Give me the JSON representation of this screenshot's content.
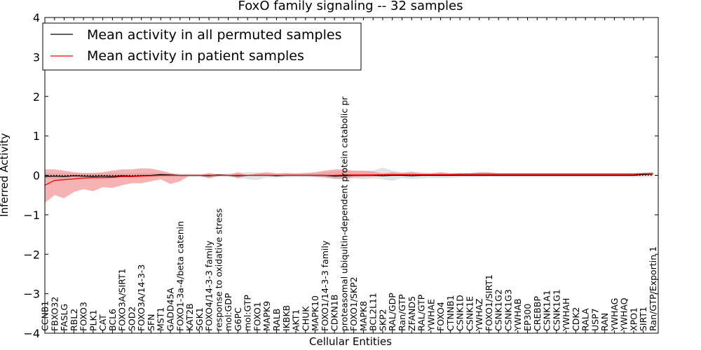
{
  "chart_data": {
    "type": "line",
    "title": "FoxO family signaling -- 32 samples",
    "xlabel": "Cellular Entities",
    "ylabel": "Inferred Activity",
    "ylim": [
      -4,
      4
    ],
    "yticks": [
      -4,
      -3,
      -2,
      -1,
      0,
      1,
      2,
      3,
      4
    ],
    "ytick_labels": [
      "−4",
      "−3",
      "−2",
      "−1",
      "0",
      "1",
      "2",
      "3",
      "4"
    ],
    "legend": {
      "location": "upper-left",
      "entries": [
        {
          "label": "Mean activity in all permuted samples",
          "color": "#000000"
        },
        {
          "label": "Mean activity in patient samples",
          "color": "#ff0000"
        }
      ]
    },
    "categories": [
      "CCNB1",
      "FBXO32",
      "FASLG",
      "RBL2",
      "FOXO3",
      "PLK1",
      "CAT",
      "BCL6",
      "FOXO3A/SIRT1",
      "SOD2",
      "FOXO3A/14-3-3",
      "SFN",
      "MST1",
      "GADD45A",
      "FOXO1-3a-4/beta catenin",
      "KAT2B",
      "SGK1",
      "FOXO4/14-3-3 family",
      "response to oxidative stress",
      "mol:GDP",
      "G6PC",
      "mol:GTP",
      "FOXO1",
      "MAPK9",
      "RALB",
      "IKBKB",
      "AKT1",
      "CHUK",
      "MAPK10",
      "FOXO1/14-3-3 family",
      "CDKN1B",
      "proteasomal ubiquitin-dependent protein catabolic pr",
      "FOXO1/SKP2",
      "MAPK8",
      "BCL2L11",
      "SKP2",
      "RAL/GDP",
      "Ran/GTP",
      "ZFAND5",
      "RAL/GTP",
      "YWHAE",
      "FOXO4",
      "CTNNB1",
      "CSNK1D",
      "CSNK1E",
      "YWHAZ",
      "FOXO1/SIRT1",
      "CSNK1G2",
      "CSNK1G3",
      "YWHAB",
      "EP300",
      "CREBBP",
      "CSNK1A1",
      "CSNK1G1",
      "YWHAH",
      "CDK2",
      "RALA",
      "USP7",
      "RAN",
      "YWHAG",
      "YWHAQ",
      "XPO1",
      "SIRT1",
      "Ran/GTP/Exportin 1"
    ],
    "series": [
      {
        "name": "Mean activity in all permuted samples",
        "color": "#000000",
        "values": [
          -0.03,
          -0.02,
          -0.03,
          -0.01,
          -0.02,
          -0.03,
          -0.02,
          -0.03,
          -0.01,
          -0.02,
          -0.01,
          0.0,
          0.02,
          0.01,
          0.0,
          0.0,
          0.0,
          -0.01,
          0.01,
          0.0,
          -0.01,
          0.0,
          0.0,
          0.0,
          -0.01,
          0.0,
          0.0,
          0.0,
          0.0,
          0.0,
          -0.02,
          -0.01,
          0.0,
          0.0,
          0.0,
          -0.01,
          0.0,
          0.0,
          -0.01,
          0.0,
          0.0,
          0.0,
          0.0,
          0.0,
          0.0,
          0.0,
          0.0,
          0.0,
          0.0,
          0.0,
          0.0,
          0.0,
          0.0,
          0.0,
          0.0,
          0.0,
          0.0,
          0.0,
          0.0,
          0.0,
          0.0,
          0.0,
          0.02,
          0.03
        ],
        "band_lower": [
          -0.08,
          -0.1,
          -0.1,
          -0.08,
          -0.08,
          -0.08,
          -0.07,
          -0.08,
          -0.06,
          -0.06,
          -0.05,
          -0.04,
          -0.03,
          -0.03,
          -0.04,
          -0.04,
          -0.04,
          -0.05,
          -0.03,
          -0.04,
          -0.06,
          -0.1,
          -0.12,
          -0.05,
          -0.06,
          -0.05,
          -0.04,
          -0.05,
          -0.05,
          -0.06,
          -0.1,
          -0.1,
          -0.08,
          -0.1,
          -0.08,
          -0.1,
          -0.14,
          -0.07,
          -0.1,
          -0.08,
          -0.06,
          -0.07,
          -0.06,
          -0.05,
          -0.05,
          -0.05,
          -0.04,
          -0.05,
          -0.05,
          -0.05,
          -0.05,
          -0.05,
          -0.05,
          -0.05,
          -0.05,
          -0.05,
          -0.05,
          -0.05,
          -0.05,
          -0.05,
          -0.05,
          -0.05,
          -0.04,
          -0.03
        ],
        "band_upper": [
          0.06,
          0.06,
          0.06,
          0.06,
          0.06,
          0.06,
          0.06,
          0.06,
          0.06,
          0.06,
          0.06,
          0.06,
          0.07,
          0.06,
          0.04,
          0.04,
          0.04,
          0.05,
          0.04,
          0.05,
          0.06,
          0.08,
          0.08,
          0.05,
          0.05,
          0.05,
          0.05,
          0.05,
          0.06,
          0.08,
          0.1,
          0.12,
          0.1,
          0.1,
          0.12,
          0.2,
          0.12,
          0.08,
          0.1,
          0.08,
          0.06,
          0.07,
          0.06,
          0.06,
          0.06,
          0.06,
          0.06,
          0.06,
          0.06,
          0.06,
          0.06,
          0.06,
          0.06,
          0.06,
          0.06,
          0.06,
          0.06,
          0.06,
          0.06,
          0.06,
          0.06,
          0.06,
          0.07,
          0.08
        ]
      },
      {
        "name": "Mean activity in patient samples",
        "color": "#ff0000",
        "values": [
          -0.25,
          -0.13,
          -0.11,
          -0.09,
          -0.07,
          -0.06,
          -0.06,
          -0.05,
          -0.03,
          -0.03,
          -0.02,
          -0.01,
          0.0,
          0.0,
          0.0,
          0.0,
          0.0,
          0.0,
          0.0,
          0.0,
          0.0,
          0.0,
          0.0,
          0.0,
          0.0,
          0.0,
          0.0,
          0.0,
          0.0,
          0.0,
          0.0,
          0.01,
          0.01,
          0.01,
          0.01,
          0.02,
          0.02,
          0.02,
          0.02,
          0.02,
          0.02,
          0.02,
          0.02,
          0.03,
          0.03,
          0.03,
          0.03,
          0.03,
          0.03,
          0.03,
          0.03,
          0.03,
          0.03,
          0.03,
          0.03,
          0.03,
          0.03,
          0.03,
          0.03,
          0.03,
          0.03,
          0.03,
          0.04,
          0.04
        ],
        "band_lower": [
          -0.7,
          -0.5,
          -0.58,
          -0.42,
          -0.35,
          -0.4,
          -0.3,
          -0.32,
          -0.25,
          -0.2,
          -0.2,
          -0.15,
          -0.1,
          -0.22,
          -0.15,
          0.0,
          0.0,
          -0.08,
          -0.02,
          0.0,
          -0.08,
          0.0,
          0.0,
          0.0,
          0.0,
          0.0,
          0.0,
          0.0,
          -0.03,
          -0.05,
          -0.08,
          -0.08,
          -0.05,
          -0.04,
          -0.03,
          0.0,
          0.0,
          0.0,
          0.0,
          0.0,
          0.0,
          0.0,
          0.0,
          0.0,
          0.0,
          0.0,
          0.0,
          0.0,
          0.0,
          0.0,
          0.0,
          0.0,
          0.0,
          0.0,
          0.0,
          0.0,
          0.0,
          0.0,
          0.0,
          0.0,
          0.0,
          0.0,
          0.03,
          0.03
        ],
        "band_upper": [
          0.15,
          0.15,
          0.12,
          0.08,
          0.06,
          0.06,
          0.08,
          0.12,
          0.15,
          0.15,
          0.18,
          0.17,
          0.12,
          0.06,
          0.0,
          0.0,
          0.0,
          0.06,
          0.02,
          0.0,
          0.08,
          0.0,
          0.05,
          0.08,
          0.05,
          0.06,
          0.05,
          0.06,
          0.08,
          0.12,
          0.15,
          0.15,
          0.12,
          0.12,
          0.1,
          0.05,
          0.08,
          0.06,
          0.08,
          0.05,
          0.05,
          0.08,
          0.05,
          0.05,
          0.05,
          0.08,
          0.08,
          0.05,
          0.05,
          0.05,
          0.05,
          0.05,
          0.05,
          0.05,
          0.05,
          0.05,
          0.05,
          0.05,
          0.05,
          0.05,
          0.05,
          0.05,
          0.06,
          0.08
        ]
      }
    ],
    "reference_line": {
      "y": 0,
      "style": "dotted"
    }
  }
}
